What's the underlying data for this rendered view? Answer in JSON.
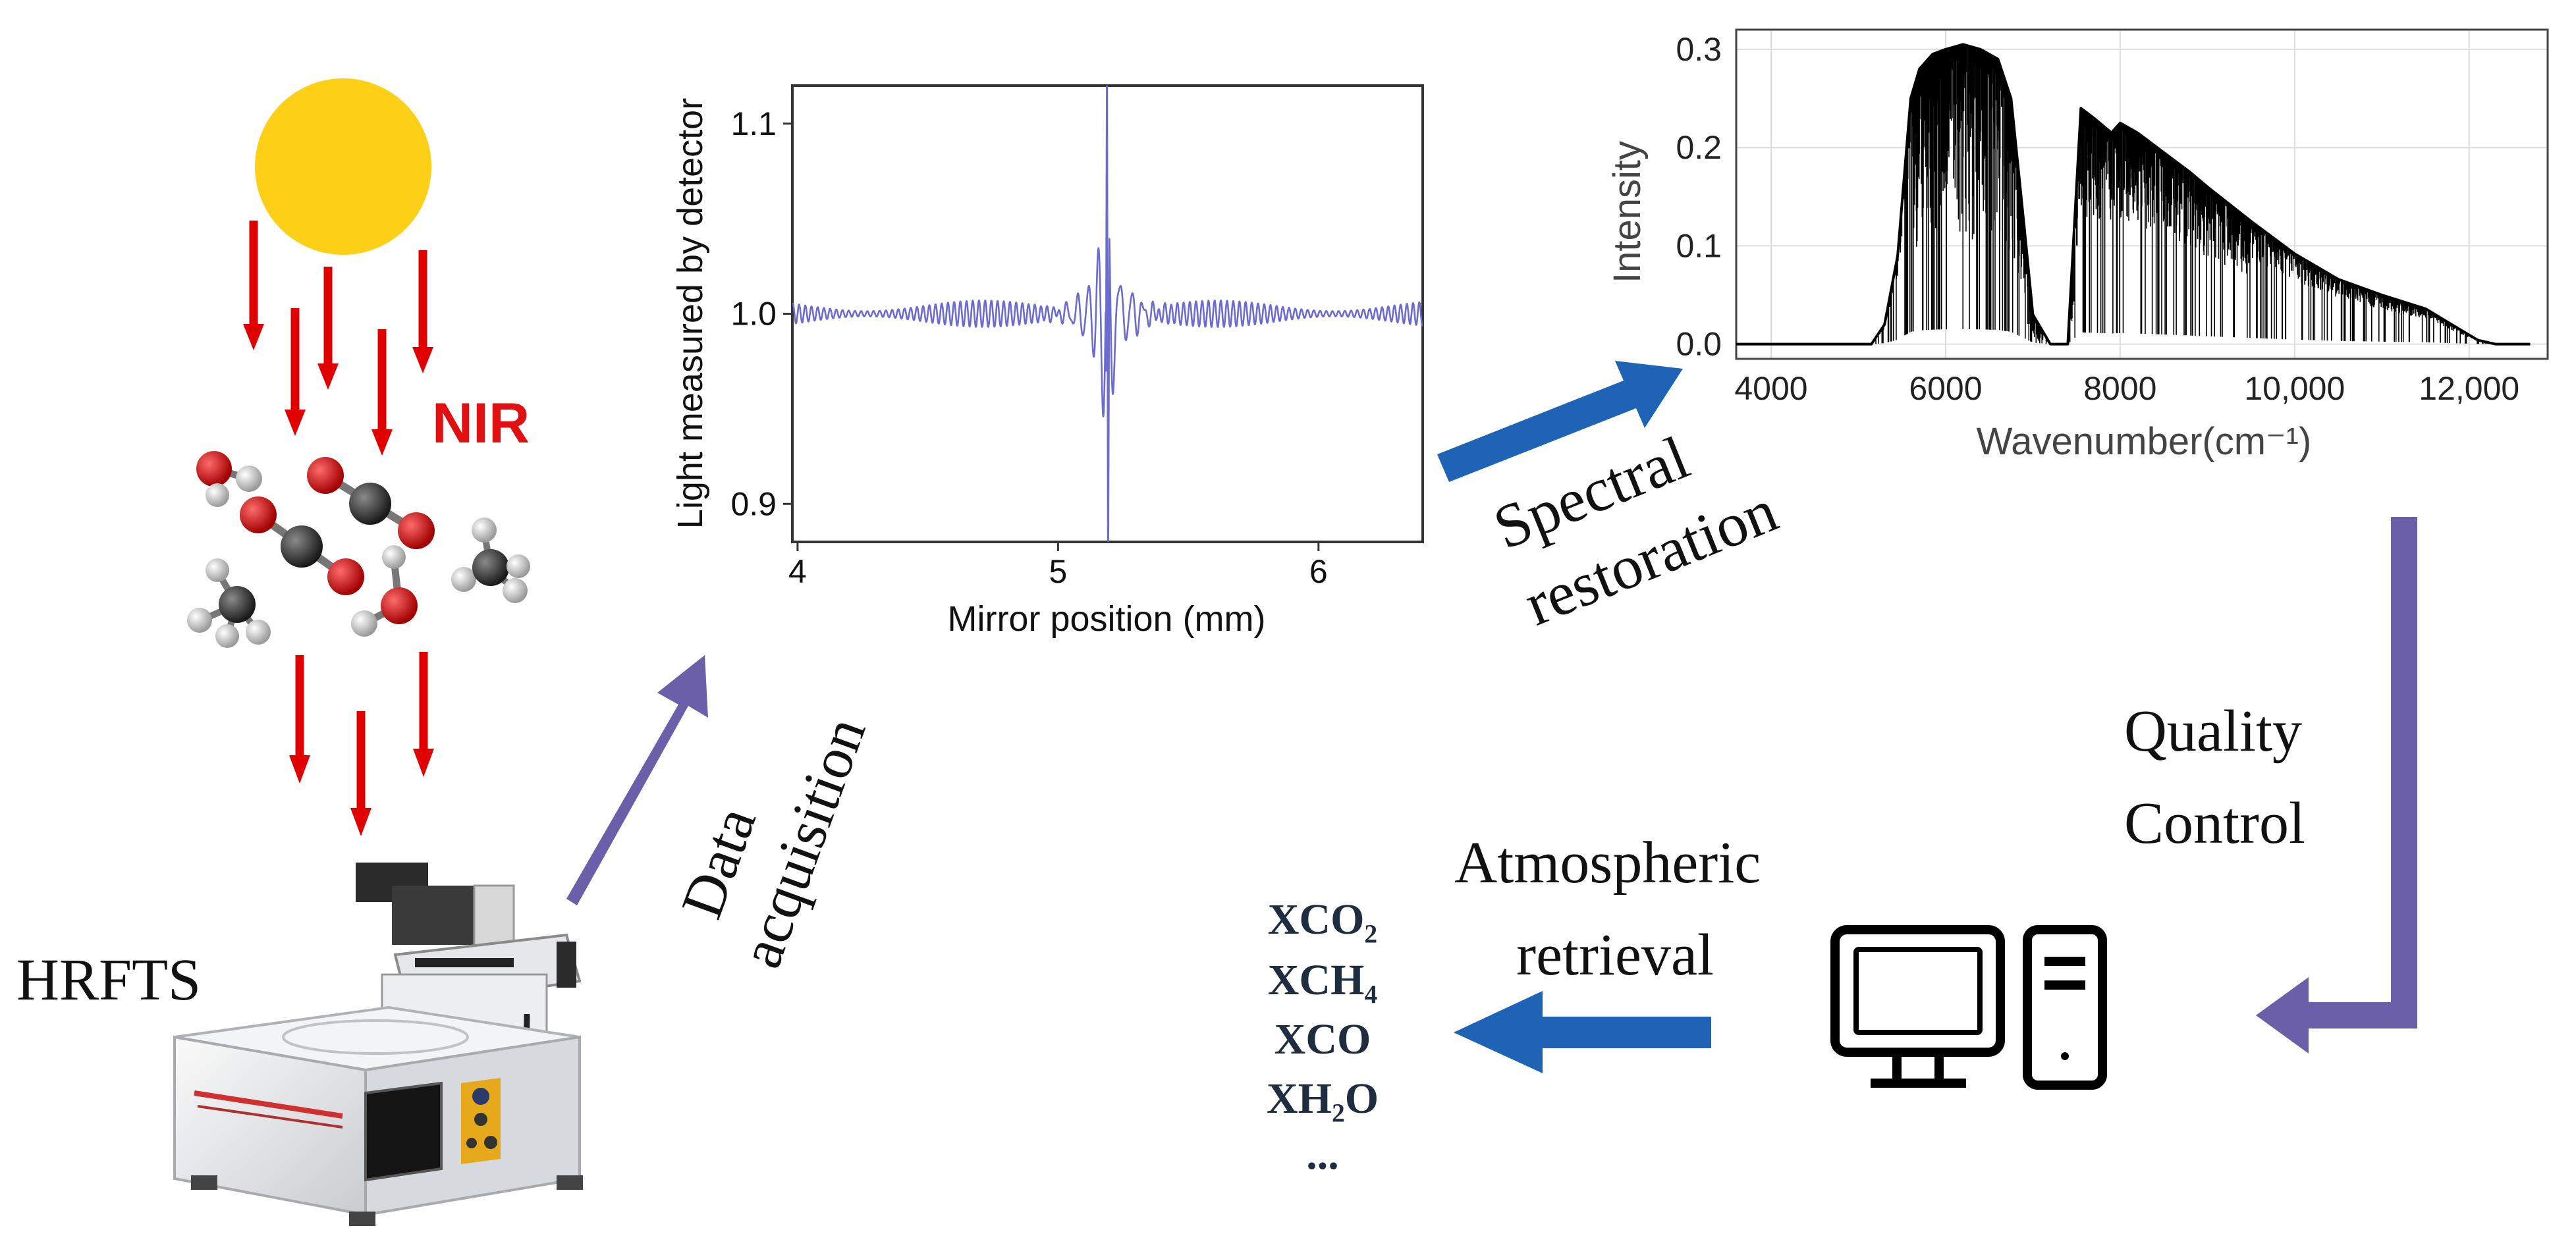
{
  "labels": {
    "nir": "NIR",
    "hrfts": "HRFTS",
    "data_acquisition": [
      "Data",
      "acquisition"
    ],
    "spectral_restoration": [
      "Spectral",
      "restoration"
    ],
    "quality_control": [
      "Quality",
      "Control"
    ],
    "atmospheric_retrieval": [
      "Atmospheric",
      "retrieval"
    ]
  },
  "outputs": [
    "XCO₂",
    "XCH₄",
    "XCO",
    "XH₂O",
    "..."
  ],
  "colors": {
    "sun": "#FDD017",
    "red_arrow": "#E00000",
    "nir_text": "#E01010",
    "purple_arrow": "#6A5FA8",
    "blue_arrow": "#1E63B5",
    "interferogram_line": "#6B6BD0",
    "output_text": "#1E2D3F"
  },
  "chart_data": [
    {
      "type": "line",
      "name": "interferogram",
      "title": "",
      "xlabel": "Mirror position (mm)",
      "ylabel": "Light measured by detector",
      "xlim": [
        3.98,
        6.4
      ],
      "ylim": [
        0.88,
        1.12
      ],
      "xticks": [
        4,
        5,
        6
      ],
      "yticks": [
        0.9,
        1.0,
        1.1
      ],
      "xtick_labels": [
        "4",
        "5",
        "6"
      ],
      "ytick_labels": [
        "0.9",
        "1.0",
        "1.1"
      ],
      "centerburst_position": 5.19,
      "baseline": 1.0
    },
    {
      "type": "line",
      "name": "solar_spectrum",
      "title": "",
      "xlabel": "Wavenumber(cm⁻¹)",
      "ylabel": "Intensity",
      "xlim": [
        3600,
        12900
      ],
      "ylim": [
        -0.015,
        0.32
      ],
      "xticks": [
        4000,
        6000,
        8000,
        10000,
        12000
      ],
      "yticks": [
        0.0,
        0.1,
        0.2,
        0.3
      ],
      "xtick_labels": [
        "4000",
        "6000",
        "8000",
        "10,000",
        "12,000"
      ],
      "ytick_labels": [
        "0.0",
        "0.1",
        "0.2",
        "0.3"
      ],
      "grid": true,
      "envelope": {
        "x": [
          3600,
          5150,
          5300,
          5450,
          5600,
          5700,
          5850,
          6000,
          6200,
          6400,
          6600,
          6750,
          6900,
          7000,
          7200,
          7400,
          7450,
          7550,
          7700,
          7900,
          8000,
          8200,
          8500,
          8800,
          9000,
          9500,
          10000,
          10500,
          11000,
          11500,
          11800,
          12100,
          12300,
          12700
        ],
        "y": [
          0.0,
          0.0,
          0.02,
          0.09,
          0.25,
          0.28,
          0.295,
          0.3,
          0.305,
          0.3,
          0.29,
          0.25,
          0.12,
          0.03,
          0.0,
          0.0,
          0.08,
          0.24,
          0.23,
          0.215,
          0.225,
          0.215,
          0.195,
          0.175,
          0.16,
          0.125,
          0.092,
          0.066,
          0.05,
          0.036,
          0.02,
          0.004,
          0.0,
          0.0
        ]
      }
    }
  ]
}
